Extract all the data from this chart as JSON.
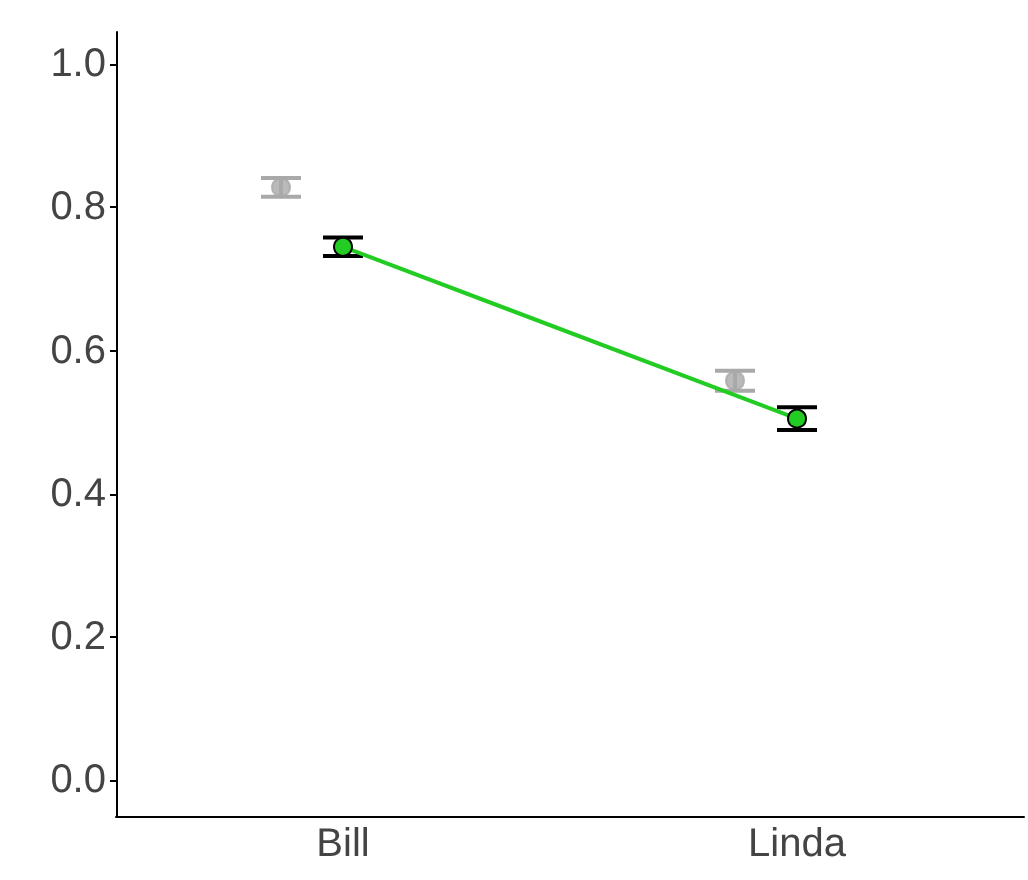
{
  "chart_data": {
    "type": "scatter",
    "categories": [
      "Bill",
      "Linda"
    ],
    "series": [
      {
        "color": "#a9a9a9",
        "values": [
          0.828,
          0.558
        ],
        "errors": [
          0.013,
          0.014
        ]
      },
      {
        "type": "line",
        "color": "#22cc22",
        "values": [
          0.745,
          0.505
        ],
        "errors": [
          0.013,
          0.016
        ]
      }
    ],
    "ylim": [
      -0.05,
      1.045
    ],
    "yticks": [
      {
        "value": 0,
        "label": "0.0"
      },
      0.2,
      0.4,
      0.6,
      0.8,
      {
        "value": 1,
        "label": "1.0"
      }
    ],
    "grid": false,
    "marker": "circle"
  }
}
